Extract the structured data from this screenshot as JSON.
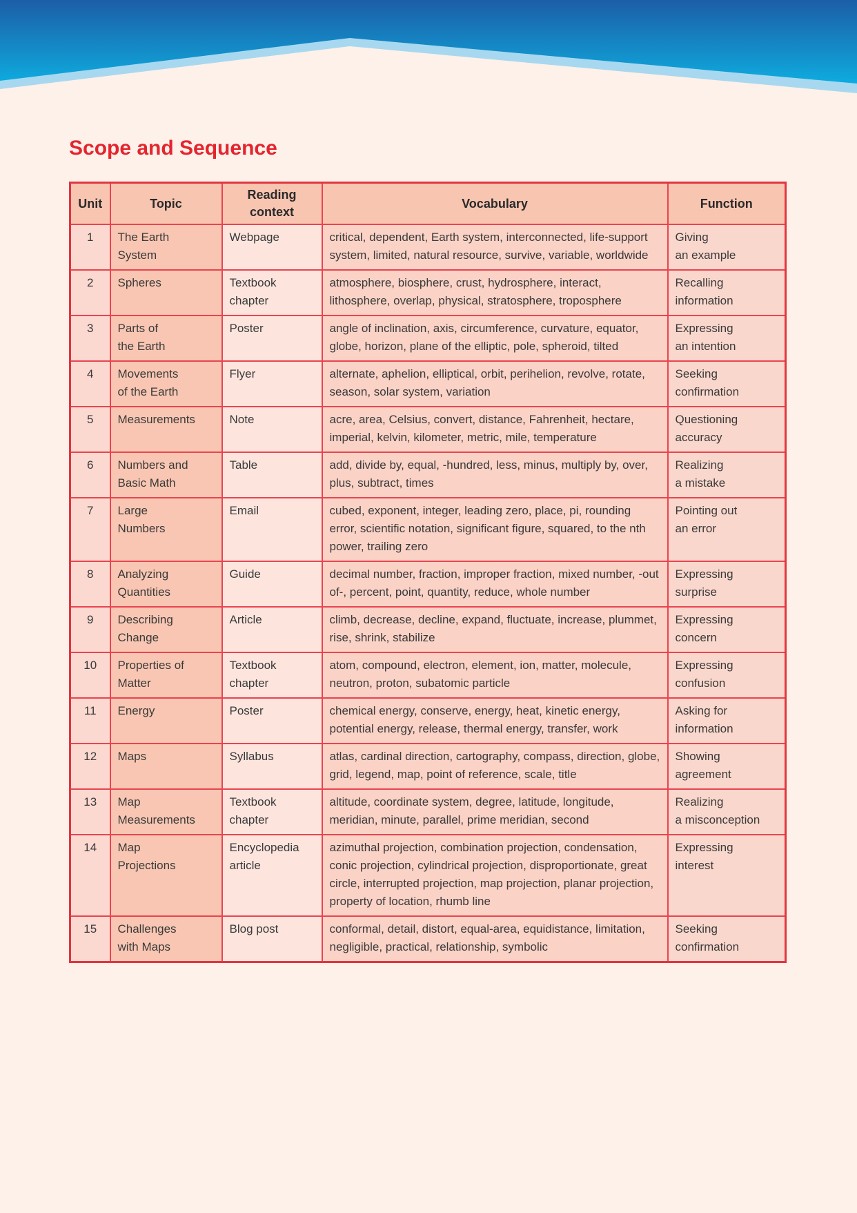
{
  "page": {
    "title": "Scope and Sequence"
  },
  "colors": {
    "page_background": "#fdf1ea",
    "title_red": "#e4252e",
    "table_border_red": "#e94450",
    "header_cell_bg": "#f8c5b1",
    "unit_cell_bg": "#fbd9d0",
    "topic_cell_bg": "#f8c6b2",
    "context_cell_bg": "#fde5de",
    "vocabulary_cell_bg": "#fad2c6",
    "function_cell_bg": "#fad7cc",
    "wave_blue_top": "#1c5ea7",
    "wave_cyan_bottom": "#09c0ef",
    "wave_light_band": "#a8d8ef"
  },
  "table": {
    "headers": {
      "unit": "Unit",
      "topic": "Topic",
      "context": "Reading\ncontext",
      "vocabulary": "Vocabulary",
      "function": "Function"
    },
    "rows": [
      {
        "unit": "1",
        "topic": "The Earth\nSystem",
        "context": "Webpage",
        "vocabulary": "critical, dependent, Earth system, interconnected, life-support system, limited, natural resource, survive, variable, worldwide",
        "function": "Giving\nan example"
      },
      {
        "unit": "2",
        "topic": "Spheres",
        "context": "Textbook\nchapter",
        "vocabulary": "atmosphere, biosphere, crust, hydrosphere, interact, lithosphere, overlap, physical, stratosphere, troposphere",
        "function": "Recalling\ninformation"
      },
      {
        "unit": "3",
        "topic": "Parts of\nthe Earth",
        "context": "Poster",
        "vocabulary": "angle of inclination, axis, circumference, curvature, equator, globe, horizon, plane of the elliptic, pole, spheroid, tilted",
        "function": "Expressing\nan intention"
      },
      {
        "unit": "4",
        "topic": "Movements\nof the Earth",
        "context": "Flyer",
        "vocabulary": "alternate, aphelion, elliptical, orbit, perihelion, revolve, rotate, season, solar system, variation",
        "function": "Seeking\nconfirmation"
      },
      {
        "unit": "5",
        "topic": "Measurements",
        "context": "Note",
        "vocabulary": "acre, area, Celsius, convert, distance, Fahrenheit, hectare, imperial, kelvin, kilometer, metric, mile, temperature",
        "function": "Questioning\naccuracy"
      },
      {
        "unit": "6",
        "topic": "Numbers and\nBasic Math",
        "context": "Table",
        "vocabulary": "add, divide by, equal, -hundred, less, minus, multiply by, over, plus, subtract, times",
        "function": "Realizing\na mistake"
      },
      {
        "unit": "7",
        "topic": "Large\nNumbers",
        "context": "Email",
        "vocabulary": "cubed, exponent, integer, leading zero, place, pi, rounding error, scientific notation, significant figure, squared, to the nth power, trailing zero",
        "function": "Pointing out\nan error"
      },
      {
        "unit": "8",
        "topic": "Analyzing\nQuantities",
        "context": "Guide",
        "vocabulary": "decimal number, fraction, improper fraction, mixed number, -out of-, percent, point, quantity, reduce, whole number",
        "function": "Expressing\nsurprise"
      },
      {
        "unit": "9",
        "topic": "Describing\nChange",
        "context": "Article",
        "vocabulary": "climb, decrease, decline, expand, fluctuate, increase, plummet, rise, shrink, stabilize",
        "function": "Expressing\nconcern"
      },
      {
        "unit": "10",
        "topic": "Properties of\nMatter",
        "context": "Textbook\nchapter",
        "vocabulary": "atom, compound, electron, element, ion, matter, molecule, neutron, proton, subatomic particle",
        "function": "Expressing\nconfusion"
      },
      {
        "unit": "11",
        "topic": "Energy",
        "context": "Poster",
        "vocabulary": "chemical energy, conserve, energy, heat, kinetic energy, potential energy, release, thermal energy, transfer, work",
        "function": "Asking for\ninformation"
      },
      {
        "unit": "12",
        "topic": "Maps",
        "context": "Syllabus",
        "vocabulary": "atlas, cardinal direction, cartography, compass, direction, globe, grid, legend, map, point of reference, scale, title",
        "function": "Showing\nagreement"
      },
      {
        "unit": "13",
        "topic": "Map\nMeasurements",
        "context": "Textbook\nchapter",
        "vocabulary": "altitude, coordinate system, degree, latitude, longitude, meridian, minute, parallel, prime meridian, second",
        "function": "Realizing\na misconception"
      },
      {
        "unit": "14",
        "topic": "Map\nProjections",
        "context": "Encyclopedia\narticle",
        "vocabulary": "azimuthal projection, combination projection, condensation, conic projection, cylindrical projection, disproportionate, great circle, interrupted projection, map projection, planar projection, property of location, rhumb line",
        "function": "Expressing\ninterest"
      },
      {
        "unit": "15",
        "topic": "Challenges\nwith Maps",
        "context": "Blog post",
        "vocabulary": "conformal, detail, distort, equal-area, equidistance, limitation, negligible, practical, relationship, symbolic",
        "function": "Seeking\nconfirmation"
      }
    ]
  }
}
